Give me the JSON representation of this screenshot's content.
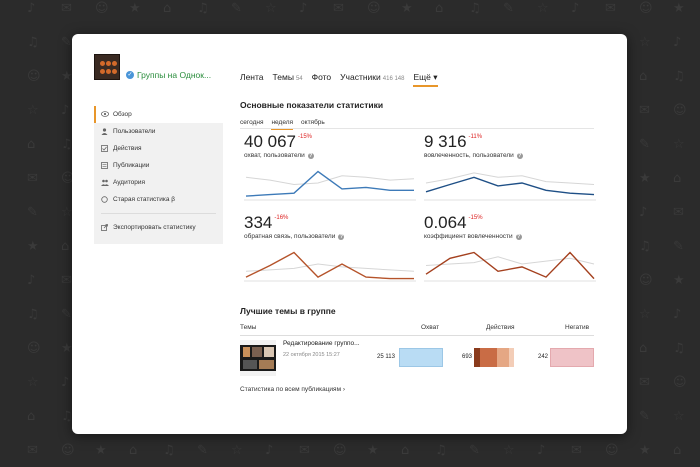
{
  "group": {
    "name": "Группы на Однок..."
  },
  "nav": {
    "items": [
      {
        "label": "Лента",
        "count": ""
      },
      {
        "label": "Темы",
        "count": "54"
      },
      {
        "label": "Фото",
        "count": ""
      },
      {
        "label": "Участники",
        "count": "416 148"
      },
      {
        "label": "Ещё ▾",
        "count": ""
      }
    ]
  },
  "sidebar": {
    "items": [
      {
        "label": "Обзор",
        "icon": "eye-icon"
      },
      {
        "label": "Пользователи",
        "icon": "user-icon"
      },
      {
        "label": "Действия",
        "icon": "check-icon"
      },
      {
        "label": "Публикации",
        "icon": "publication-icon"
      },
      {
        "label": "Аудитория",
        "icon": "audience-icon"
      },
      {
        "label": "Старая статистика β",
        "icon": "circle-icon"
      }
    ],
    "export_label": "Экспортировать статистику"
  },
  "stats": {
    "title": "Основные показатели статистики",
    "periods": [
      "сегодня",
      "неделя",
      "октябрь"
    ],
    "active_period": 1,
    "metrics": [
      {
        "value": "40 067",
        "delta": "-15%",
        "label": "охват, пользователи",
        "color": "#3d7ab8",
        "series_main": [
          0.1,
          0.15,
          0.2,
          0.95,
          0.35,
          0.4,
          0.3,
          0.3
        ],
        "series_prev": [
          0.75,
          0.65,
          0.5,
          0.55,
          0.8,
          0.75,
          0.65,
          0.7
        ]
      },
      {
        "value": "9 316",
        "delta": "-11%",
        "label": "вовлеченность, пользователи",
        "color": "#1e4f86",
        "series_main": [
          0.25,
          0.5,
          0.75,
          0.45,
          0.55,
          0.3,
          0.2,
          0.15
        ],
        "series_prev": [
          0.55,
          0.7,
          0.9,
          0.75,
          0.8,
          0.6,
          0.55,
          0.5
        ]
      },
      {
        "value": "334",
        "delta": "-16%",
        "label": "обратная связь, пользователи",
        "color": "#b5532a",
        "series_main": [
          0.1,
          0.5,
          0.95,
          0.1,
          0.55,
          0.1,
          0.05,
          0.05
        ],
        "series_prev": [
          0.3,
          0.35,
          0.4,
          0.55,
          0.45,
          0.4,
          0.35,
          0.3
        ]
      },
      {
        "value": "0.064",
        "delta": "-15%",
        "label": "коэффициент вовлеченности",
        "color": "#a4401e",
        "series_main": [
          0.2,
          0.75,
          0.95,
          0.3,
          0.45,
          0.1,
          0.95,
          0.05
        ],
        "series_prev": [
          0.5,
          0.55,
          0.6,
          0.8,
          0.55,
          0.65,
          0.75,
          0.55
        ]
      }
    ]
  },
  "topics": {
    "title": "Лучшие темы в группе",
    "columns": [
      "Темы",
      "Охват",
      "Действия",
      "Негатив"
    ],
    "rows": [
      {
        "title": "Редактирование группо...",
        "date": "22 октября 2015 15:27",
        "reach": "25 113",
        "actions": "693",
        "negative": "242",
        "reach_share": 1.0,
        "actions_share": 0.9,
        "negative_share": 1.0
      }
    ],
    "footer_link": "Статистика по всем публикациям ›"
  }
}
